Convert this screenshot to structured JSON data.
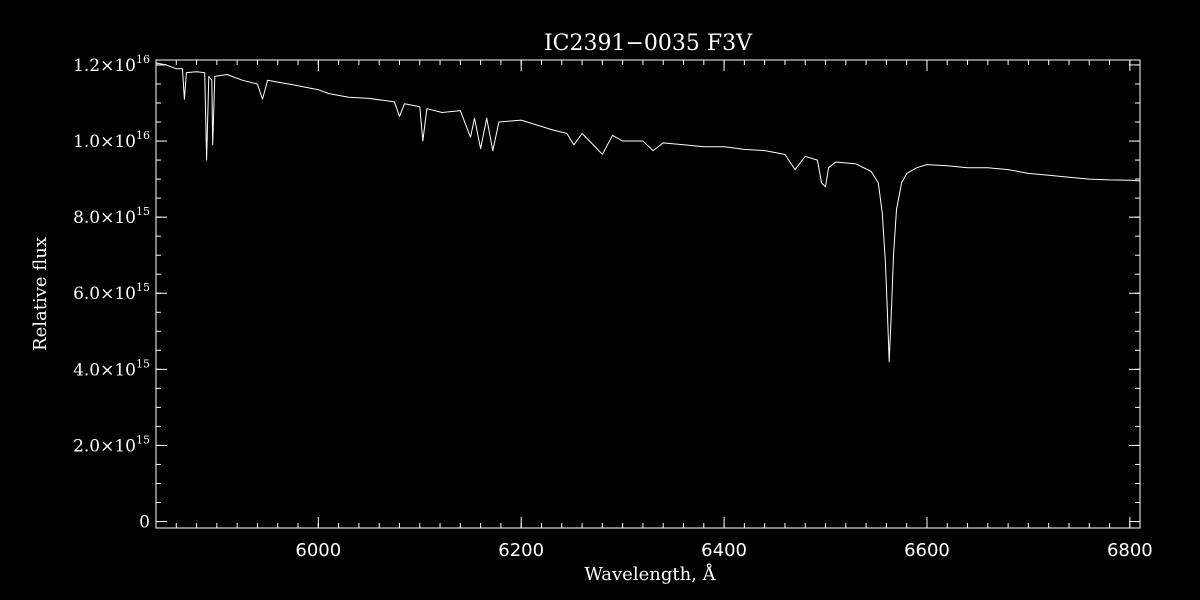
{
  "chart_data": {
    "type": "line",
    "title": "IC2391−0035   F3V",
    "xlabel": "Wavelength, Å",
    "ylabel": "Relative flux",
    "xlim": [
      5840,
      6810
    ],
    "ylim": [
      -170000000000000.0,
      1.213e+16
    ],
    "grid": false,
    "legend": "none",
    "colors": {
      "background": "#000000",
      "foreground": "#ffffff"
    },
    "x_ticks": [
      {
        "value": 6000,
        "label": "6000"
      },
      {
        "value": 6200,
        "label": "6200"
      },
      {
        "value": 6400,
        "label": "6400"
      },
      {
        "value": 6600,
        "label": "6600"
      },
      {
        "value": 6800,
        "label": "6800"
      }
    ],
    "y_ticks": [
      {
        "value": 0,
        "mantissa": "0",
        "exponent": ""
      },
      {
        "value": 2000000000000000.0,
        "mantissa": "2.0×10",
        "exponent": "15"
      },
      {
        "value": 4000000000000000.0,
        "mantissa": "4.0×10",
        "exponent": "15"
      },
      {
        "value": 6000000000000000.0,
        "mantissa": "6.0×10",
        "exponent": "15"
      },
      {
        "value": 8000000000000000.0,
        "mantissa": "8.0×10",
        "exponent": "15"
      },
      {
        "value": 1e+16,
        "mantissa": "1.0×10",
        "exponent": "16"
      },
      {
        "value": 1.2e+16,
        "mantissa": "1.2×10",
        "exponent": "16"
      }
    ],
    "x_minor_step": 20,
    "y_minor_step": 500000000000000.0,
    "series": [
      {
        "points": [
          [
            5840,
            1.205e+16
          ],
          [
            5850,
            1.2e+16
          ],
          [
            5860,
            1.19e+16
          ],
          [
            5866,
            1.19e+16
          ],
          [
            5868,
            1.11e+16
          ],
          [
            5870,
            1.18e+16
          ],
          [
            5880,
            1.182e+16
          ],
          [
            5888,
            1.18e+16
          ],
          [
            5889.9,
            9500000000000000.0
          ],
          [
            5892,
            1.17e+16
          ],
          [
            5895,
            1.16e+16
          ],
          [
            5895.9,
            9900000000000000.0
          ],
          [
            5898,
            1.17e+16
          ],
          [
            5910,
            1.175e+16
          ],
          [
            5925,
            1.16e+16
          ],
          [
            5940,
            1.15e+16
          ],
          [
            5945,
            1.11e+16
          ],
          [
            5950,
            1.16e+16
          ],
          [
            5960,
            1.155e+16
          ],
          [
            5975,
            1.148e+16
          ],
          [
            5990,
            1.14e+16
          ],
          [
            6000,
            1.135e+16
          ],
          [
            6010,
            1.125e+16
          ],
          [
            6020,
            1.12e+16
          ],
          [
            6030,
            1.115e+16
          ],
          [
            6050,
            1.112e+16
          ],
          [
            6075,
            1.103e+16
          ],
          [
            6080,
            1.065e+16
          ],
          [
            6085,
            1.098e+16
          ],
          [
            6100,
            1.09e+16
          ],
          [
            6103,
            1e+16
          ],
          [
            6107,
            1.085e+16
          ],
          [
            6122,
            1.075e+16
          ],
          [
            6140,
            1.08e+16
          ],
          [
            6150,
            1.01e+16
          ],
          [
            6154,
            1.06e+16
          ],
          [
            6160,
            9800000000000000.0
          ],
          [
            6166,
            1.06e+16
          ],
          [
            6172,
            9750000000000000.0
          ],
          [
            6178,
            1.05e+16
          ],
          [
            6200,
            1.055e+16
          ],
          [
            6230,
            1.03e+16
          ],
          [
            6245,
            1.02e+16
          ],
          [
            6252,
            9900000000000000.0
          ],
          [
            6260,
            1.02e+16
          ],
          [
            6280,
            9650000000000000.0
          ],
          [
            6290,
            1.015e+16
          ],
          [
            6300,
            1e+16
          ],
          [
            6320,
            1e+16
          ],
          [
            6330,
            9750000000000000.0
          ],
          [
            6340,
            9950000000000000.0
          ],
          [
            6360,
            9900000000000000.0
          ],
          [
            6380,
            9850000000000000.0
          ],
          [
            6400,
            9850000000000000.0
          ],
          [
            6420,
            9780000000000000.0
          ],
          [
            6440,
            9750000000000000.0
          ],
          [
            6460,
            9650000000000000.0
          ],
          [
            6470,
            9250000000000000.0
          ],
          [
            6480,
            9600000000000000.0
          ],
          [
            6492,
            9500000000000000.0
          ],
          [
            6496,
            8900000000000000.0
          ],
          [
            6500,
            8800000000000000.0
          ],
          [
            6503,
            9300000000000000.0
          ],
          [
            6510,
            9450000000000000.0
          ],
          [
            6530,
            9400000000000000.0
          ],
          [
            6545,
            9200000000000000.0
          ],
          [
            6552,
            8900000000000000.0
          ],
          [
            6556,
            8100000000000000.0
          ],
          [
            6559,
            6800000000000000.0
          ],
          [
            6561,
            5500000000000000.0
          ],
          [
            6562.8,
            4200000000000000.0
          ],
          [
            6565,
            5600000000000000.0
          ],
          [
            6567,
            7000000000000000.0
          ],
          [
            6570,
            8200000000000000.0
          ],
          [
            6575,
            8900000000000000.0
          ],
          [
            6580,
            9150000000000000.0
          ],
          [
            6590,
            9300000000000000.0
          ],
          [
            6600,
            9380000000000000.0
          ],
          [
            6620,
            9350000000000000.0
          ],
          [
            6640,
            9300000000000000.0
          ],
          [
            6660,
            9300000000000000.0
          ],
          [
            6680,
            9250000000000000.0
          ],
          [
            6700,
            9150000000000000.0
          ],
          [
            6720,
            9100000000000000.0
          ],
          [
            6740,
            9050000000000000.0
          ],
          [
            6760,
            9000000000000000.0
          ],
          [
            6780,
            8980000000000000.0
          ],
          [
            6800,
            8970000000000000.0
          ],
          [
            6810,
            8950000000000000.0
          ]
        ]
      }
    ]
  }
}
